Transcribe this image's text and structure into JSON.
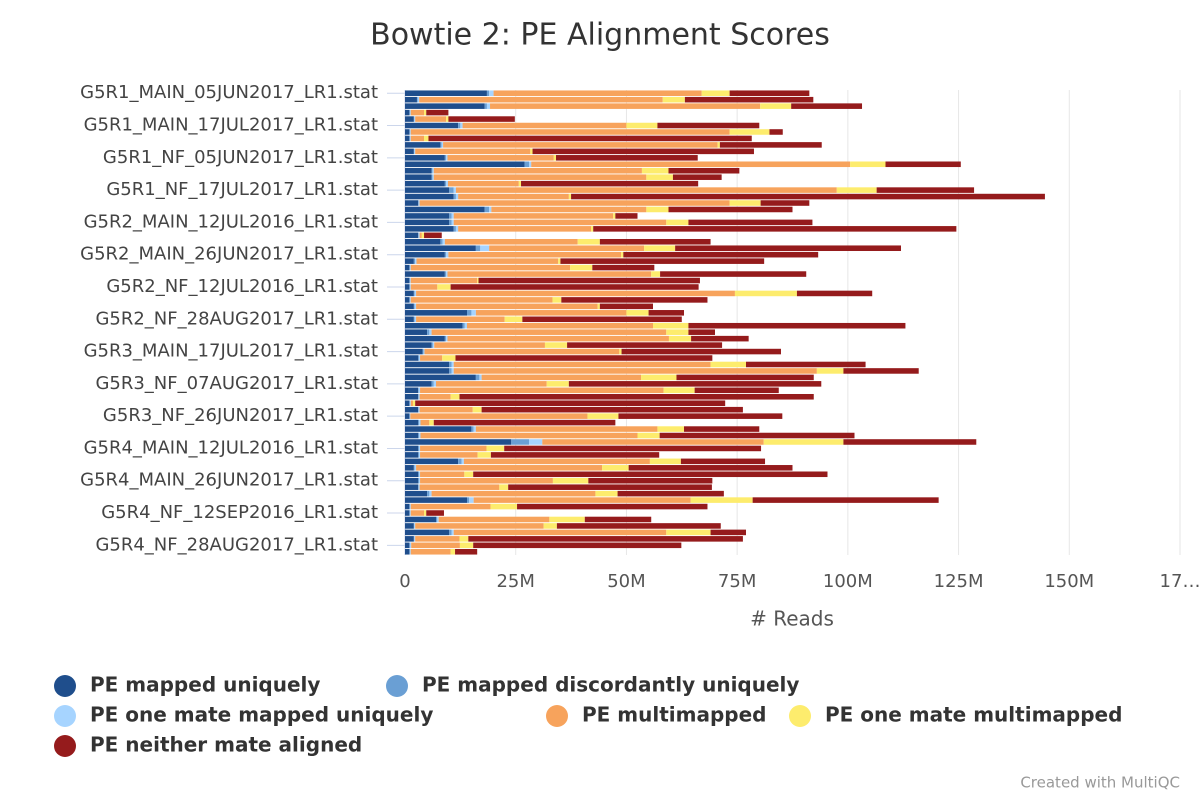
{
  "chart_data": {
    "type": "stacked-bar-horizontal",
    "title": "Bowtie 2: PE Alignment Scores",
    "x_label": "# Reads",
    "credit": "Created with MultiQC",
    "categories": [
      "G5R1_MAIN_05JUN2017_LR1.stat",
      null,
      null,
      null,
      null,
      "G5R1_MAIN_17JUL2017_LR1.stat",
      null,
      null,
      null,
      null,
      "G5R1_NF_05JUN2017_LR1.stat",
      null,
      null,
      null,
      null,
      "G5R1_NF_17JUL2017_LR1.stat",
      null,
      null,
      null,
      null,
      "G5R2_MAIN_12JUL2016_LR1.stat",
      null,
      null,
      null,
      null,
      "G5R2_MAIN_26JUN2017_LR1.stat",
      null,
      null,
      null,
      null,
      "G5R2_NF_12JUL2016_LR1.stat",
      null,
      null,
      null,
      null,
      "G5R2_NF_28AUG2017_LR1.stat",
      null,
      null,
      null,
      null,
      "G5R3_MAIN_17JUL2017_LR1.stat",
      null,
      null,
      null,
      null,
      "G5R3_NF_07AUG2017_LR1.stat",
      null,
      null,
      null,
      null,
      "G5R3_NF_26JUN2017_LR1.stat",
      null,
      null,
      null,
      null,
      "G5R4_MAIN_12JUL2016_LR1.stat",
      null,
      null,
      null,
      null,
      "G5R4_MAIN_26JUN2017_LR1.stat",
      null,
      null,
      null,
      null,
      "G5R4_NF_12SEP2016_LR1.stat",
      null,
      null,
      null,
      null,
      "G5R4_NF_28AUG2017_LR1.stat",
      null
    ],
    "series": [
      {
        "name": "PE mapped uniquely",
        "color": "#1f4e8c",
        "values": [
          18500000.0,
          2700000.0,
          18000000.0,
          1000000.0,
          2000000.0,
          12000000.0,
          1000000.0,
          1000000.0,
          8000000.0,
          2000000.0,
          9000000.0,
          27000000.0,
          6000000.0,
          6000000.0,
          9000000.0,
          10000000.0,
          11000000.0,
          3000000.0,
          18000000.0,
          10000000.0,
          10000000.0,
          11000000.0,
          3000000.0,
          8000000.0,
          16000000.0,
          9000000.0,
          2000000.0,
          1000000.0,
          9000000.0,
          1000000.0,
          1000000.0,
          2000000.0,
          1000000.0,
          2000000.0,
          14000000.0,
          2000000.0,
          13000000.0,
          5000000.0,
          9000000.0,
          6000000.0,
          4000000.0,
          3000000.0,
          10000000.0,
          10000000.0,
          16000000.0,
          6000000.0,
          3000000.0,
          3000000.0,
          1000000.0,
          3000000.0,
          1000000.0,
          3000000.0,
          15000000.0,
          3000000.0,
          24000000.0,
          3000000.0,
          3000000.0,
          12000000.0,
          2000000.0,
          3000000.0,
          3000000.0,
          3000000.0,
          5000000.0,
          14000000.0,
          1000000.0,
          1000000.0,
          7000000.0,
          2000000.0,
          10000000.0,
          2000000.0,
          1000000.0,
          1000000.0
        ]
      },
      {
        "name": "PE mapped discordantly uniquely",
        "color": "#6a9fd4",
        "values": [
          500000.0,
          200000.0,
          500000.0,
          100000.0,
          100000.0,
          500000.0,
          100000.0,
          100000.0,
          300000.0,
          100000.0,
          300000.0,
          1000000.0,
          200000.0,
          200000.0,
          300000.0,
          1000000.0,
          500000.0,
          100000.0,
          1000000.0,
          500000.0,
          500000.0,
          500000.0,
          100000.0,
          500000.0,
          1000000.0,
          300000.0,
          300000.0,
          100000.0,
          300000.0,
          100000.0,
          100000.0,
          200000.0,
          100000.0,
          200000.0,
          1000000.0,
          200000.0,
          500000.0,
          500000.0,
          300000.0,
          300000.0,
          200000.0,
          200000.0,
          500000.0,
          500000.0,
          800000.0,
          500000.0,
          100000.0,
          100000.0,
          100000.0,
          100000.0,
          100000.0,
          200000.0,
          500000.0,
          200000.0,
          4000000.0,
          200000.0,
          200000.0,
          800000.0,
          200000.0,
          200000.0,
          200000.0,
          100000.0,
          500000.0,
          500000.0,
          100000.0,
          100000.0,
          300000.0,
          100000.0,
          500000.0,
          100000.0,
          100000.0,
          100000.0
        ]
      },
      {
        "name": "PE one mate mapped uniquely",
        "color": "#a6d4ff",
        "values": [
          1000000.0,
          300000.0,
          700000.0,
          200000.0,
          200000.0,
          500000.0,
          200000.0,
          200000.0,
          300000.0,
          200000.0,
          300000.0,
          500000.0,
          300000.0,
          300000.0,
          400000.0,
          500000.0,
          500000.0,
          200000.0,
          500000.0,
          500000.0,
          500000.0,
          500000.0,
          200000.0,
          500000.0,
          2000000.0,
          500000.0,
          300000.0,
          200000.0,
          300000.0,
          200000.0,
          200000.0,
          300000.0,
          200000.0,
          300000.0,
          1000000.0,
          300000.0,
          500000.0,
          500000.0,
          300000.0,
          300000.0,
          200000.0,
          200000.0,
          500000.0,
          500000.0,
          500000.0,
          500000.0,
          300000.0,
          200000.0,
          200000.0,
          200000.0,
          100000.0,
          300000.0,
          500000.0,
          300000.0,
          3000000.0,
          200000.0,
          200000.0,
          500000.0,
          300000.0,
          200000.0,
          200000.0,
          200000.0,
          500000.0,
          1000000.0,
          200000.0,
          200000.0,
          300000.0,
          200000.0,
          500000.0,
          200000.0,
          300000.0,
          200000.0
        ]
      },
      {
        "name": "PE multimapped",
        "color": "#f7a35c",
        "values": [
          47000000.0,
          55000000.0,
          61000000.0,
          3000000.0,
          7000000.0,
          37000000.0,
          72000000.0,
          3000000.0,
          62000000.0,
          26000000.0,
          24000000.0,
          72000000.0,
          47000000.0,
          48000000.0,
          16000000.0,
          86000000.0,
          25000000.0,
          70000000.0,
          35000000.0,
          36000000.0,
          48000000.0,
          30000000.0,
          500000.0,
          30000000.0,
          35000000.0,
          39000000.0,
          32000000.0,
          36000000.0,
          46000000.0,
          15000000.0,
          6000000.0,
          72000000.0,
          32000000.0,
          41000000.0,
          34000000.0,
          20000000.0,
          42000000.0,
          53000000.0,
          50000000.0,
          25000000.0,
          44000000.0,
          5000000.0,
          58000000.0,
          82000000.0,
          36000000.0,
          25000000.0,
          55000000.0,
          7000000.0,
          500000.0,
          12000000.0,
          40000000.0,
          2000000.0,
          41000000.0,
          49000000.0,
          50000000.0,
          15000000.0,
          13000000.0,
          42000000.0,
          42000000.0,
          10000000.0,
          30000000.0,
          18000000.0,
          37000000.0,
          49000000.0,
          18000000.0,
          3000000.0,
          25000000.0,
          29000000.0,
          48000000.0,
          10000000.0,
          11000000.0,
          9000000.0
        ]
      },
      {
        "name": "PE one mate multimapped",
        "color": "#fdec6d",
        "values": [
          6300000.0,
          5000000.0,
          7000000.0,
          500000.0,
          500000.0,
          7000000.0,
          9000000.0,
          1000000.0,
          500000.0,
          500000.0,
          500000.0,
          8000000.0,
          6000000.0,
          6000000.0,
          500000.0,
          9000000.0,
          500000.0,
          7000000.0,
          5000000.0,
          500000.0,
          5000000.0,
          500000.0,
          500000.0,
          5000000.0,
          7000000.0,
          500000.0,
          500000.0,
          5000000.0,
          2000000.0,
          300000.0,
          3000000.0,
          14000000.0,
          2000000.0,
          500000.0,
          5000000.0,
          4000000.0,
          8000000.0,
          5000000.0,
          5000000.0,
          5000000.0,
          500000.0,
          3000000.0,
          8000000.0,
          6000000.0,
          8000000.0,
          5000000.0,
          7000000.0,
          2000000.0,
          500000.0,
          2000000.0,
          7000000.0,
          1000000.0,
          6000000.0,
          5000000.0,
          18000000.0,
          4000000.0,
          3000000.0,
          7000000.0,
          6000000.0,
          2000000.0,
          8000000.0,
          2000000.0,
          5000000.0,
          14000000.0,
          6000000.0,
          500000.0,
          8000000.0,
          3000000.0,
          10000000.0,
          2000000.0,
          3000000.0,
          1000000.0
        ]
      },
      {
        "name": "PE neither mate aligned",
        "color": "#951b1c",
        "values": [
          18000000.0,
          29000000.0,
          16000000.0,
          5000000.0,
          15000000.0,
          23000000.0,
          3000000.0,
          73000000.0,
          23000000.0,
          50000000.0,
          32000000.0,
          17000000.0,
          16000000.0,
          11000000.0,
          40000000.0,
          22000000.0,
          107000000.0,
          11000000.0,
          28000000.0,
          5000000.0,
          28000000.0,
          82000000.0,
          4000000.0,
          25000000.0,
          51000000.0,
          44000000.0,
          46000000.0,
          14000000.0,
          33000000.0,
          50000000.0,
          56000000.0,
          17000000.0,
          33000000.0,
          12000000.0,
          8000000.0,
          36000000.0,
          49000000.0,
          6000000.0,
          13000000.0,
          35000000.0,
          36000000.0,
          58000000.0,
          27000000.0,
          17000000.0,
          31000000.0,
          57000000.0,
          19000000.0,
          80000000.0,
          70000000.0,
          59000000.0,
          37000000.0,
          41000000.0,
          17000000.0,
          44000000.0,
          30000000.0,
          58000000.0,
          38000000.0,
          19000000.0,
          37000000.0,
          80000000.0,
          28000000.0,
          46000000.0,
          24000000.0,
          42000000.0,
          43000000.0,
          4000000.0,
          15000000.0,
          37000000.0,
          8000000.0,
          62000000.0,
          47000000.0,
          5000000.0
        ]
      }
    ],
    "xlim": [
      0,
      175000000
    ],
    "xticks": [
      0,
      {
        "value": 25000000,
        "label": "25M"
      },
      {
        "value": 50000000,
        "label": "50M"
      },
      {
        "value": 75000000,
        "label": "75M"
      },
      {
        "value": 100000000,
        "label": "100M"
      },
      {
        "value": 125000000,
        "label": "125M"
      },
      {
        "value": 150000000,
        "label": "150M"
      },
      {
        "value": 175000000,
        "label": "17…"
      }
    ],
    "grid": true,
    "legend": "bottom"
  }
}
